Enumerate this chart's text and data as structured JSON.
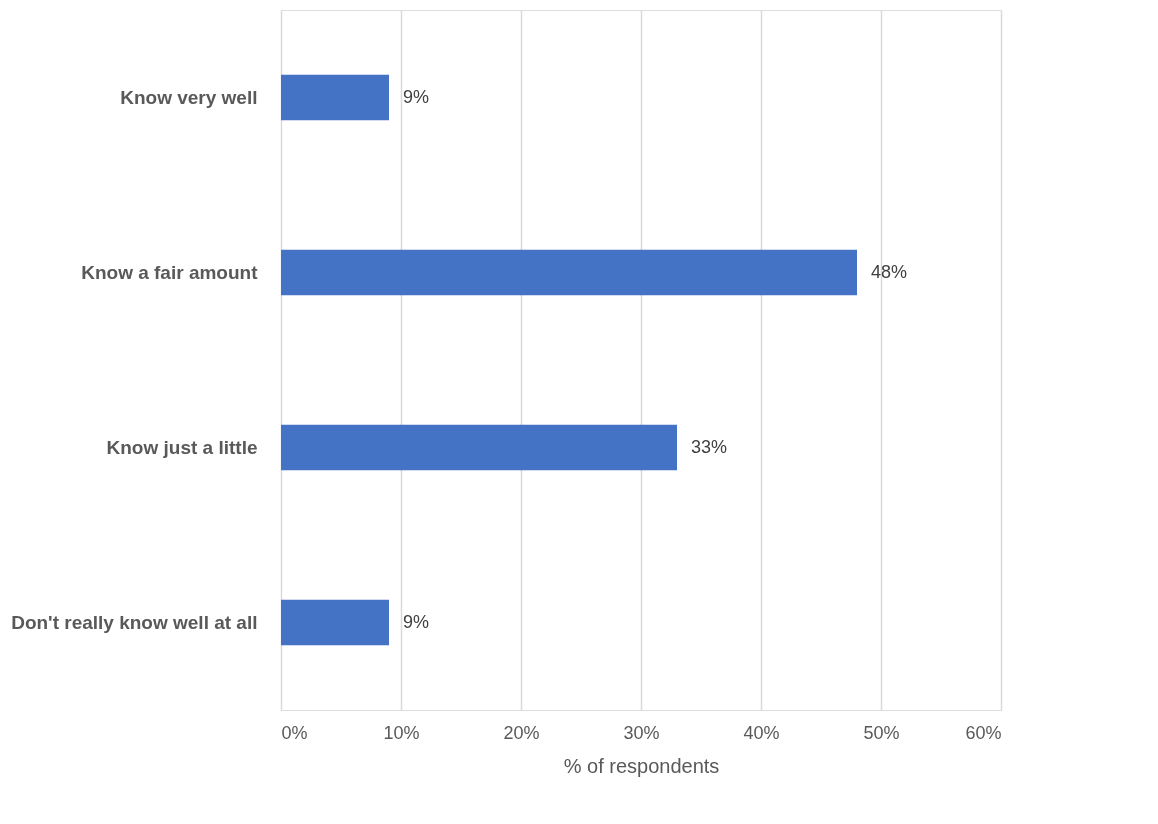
{
  "chart_data": {
    "type": "bar",
    "orientation": "horizontal",
    "xlabel": "% of respondents",
    "categories": [
      "Know very well",
      "Know a fair amount",
      "Know just a little",
      "Don't really know well at all"
    ],
    "values": [
      9,
      48,
      33,
      9
    ],
    "value_labels": [
      "9%",
      "48%",
      "33%",
      "9%"
    ],
    "color": "#4472c4",
    "xlim": [
      0,
      60
    ],
    "xticks": [
      {
        "value": 0,
        "label": "0%"
      },
      {
        "value": 10,
        "label": "10%"
      },
      {
        "value": 20,
        "label": "20%"
      },
      {
        "value": 30,
        "label": "30%"
      },
      {
        "value": 40,
        "label": "40%"
      },
      {
        "value": 50,
        "label": "50%"
      },
      {
        "value": 60,
        "label": "60%"
      }
    ],
    "grid": "x"
  }
}
